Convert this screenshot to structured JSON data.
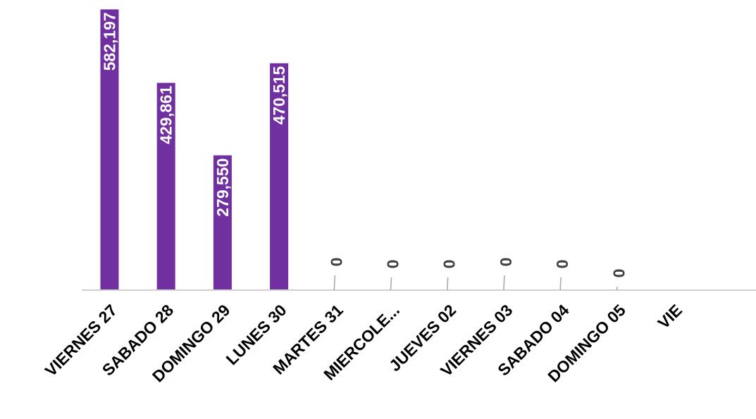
{
  "chart_data": {
    "type": "bar",
    "categories": [
      "VIERNES 27",
      "SABADO 28",
      "DOMINGO 29",
      "LUNES 30",
      "MARTES 31",
      "MIERCOLE...",
      "JUEVES 02",
      "VIERNES 03",
      "SABADO 04",
      "DOMINGO 05",
      "VIE"
    ],
    "series": [
      {
        "values": [
          582197,
          429861,
          279550,
          470515,
          0,
          0,
          0,
          0,
          0,
          0,
          0
        ]
      }
    ],
    "value_labels": [
      "582,197",
      "429,861",
      "279,550",
      "470,515",
      "0",
      "0",
      "0",
      "0",
      "0",
      "0",
      ""
    ],
    "title": "",
    "xlabel": "",
    "ylabel": "",
    "ylim": [
      0,
      590000
    ],
    "grid": false,
    "legend": "none",
    "colors": {
      "bar": "#7030a0",
      "bar_label": "#ffffff",
      "zero_label": "#404040",
      "axis": "#d0d0d0",
      "leader": "#a6a6a6",
      "tick_label": "#000000"
    }
  }
}
